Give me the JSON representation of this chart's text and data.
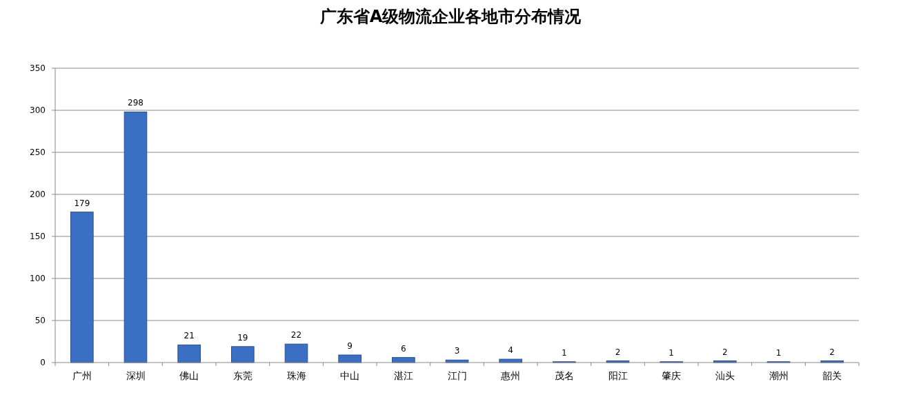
{
  "chart_data": {
    "type": "bar",
    "title": "广东省A级物流企业各地市分布情况",
    "categories": [
      "广州",
      "深圳",
      "佛山",
      "东莞",
      "珠海",
      "中山",
      "湛江",
      "江门",
      "惠州",
      "茂名",
      "阳江",
      "肇庆",
      "汕头",
      "潮州",
      "韶关"
    ],
    "values": [
      179,
      298,
      21,
      19,
      22,
      9,
      6,
      3,
      4,
      1,
      2,
      1,
      2,
      1,
      2
    ],
    "color": "#3a6fc4",
    "ylim": [
      0,
      350
    ],
    "yticks": [
      0,
      50,
      100,
      150,
      200,
      250,
      300,
      350
    ],
    "grid": "y",
    "data_labels": true
  }
}
